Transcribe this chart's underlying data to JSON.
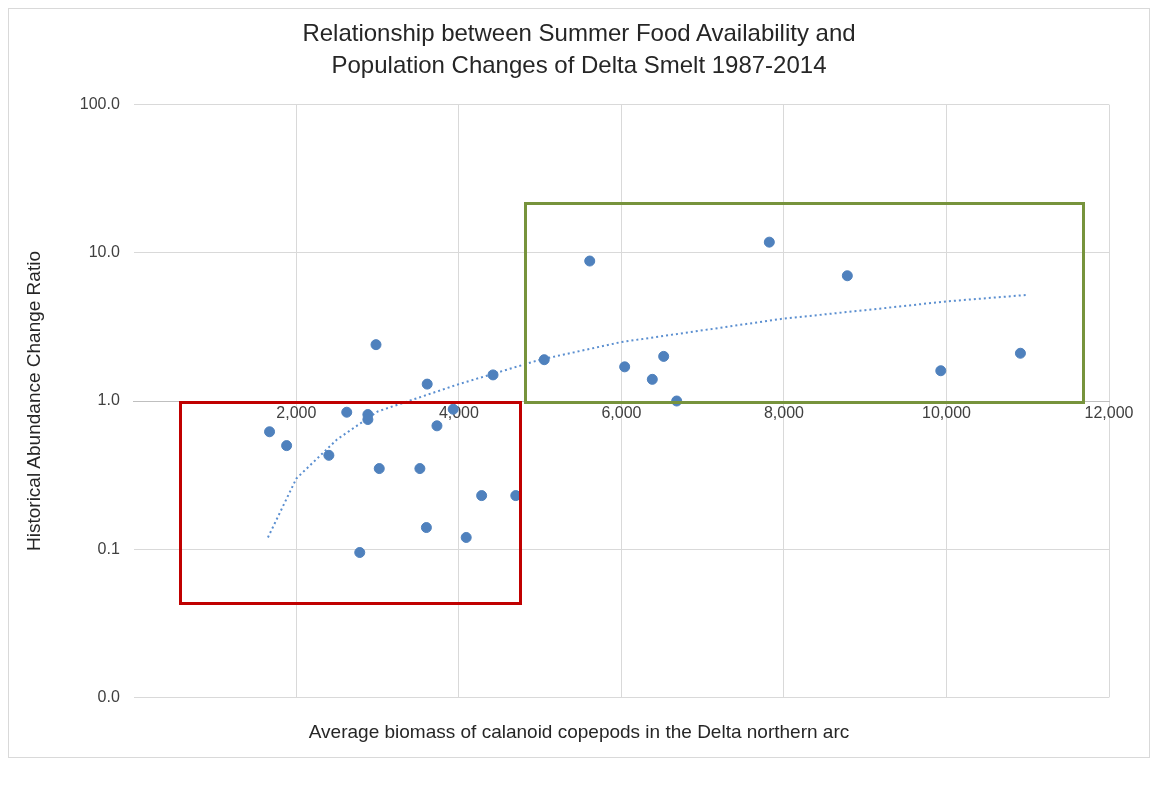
{
  "chart_data": {
    "type": "scatter",
    "title": "Relationship between Summer Food Availability and Population Changes of Delta Smelt 1987-2014",
    "xlabel": "Average biomass of calanoid copepods in the Delta northern arc",
    "ylabel": "Historical Abundance Change Ratio",
    "log": "y",
    "grid": true,
    "legend": false,
    "marker": "circle",
    "xlim": [
      0,
      12000
    ],
    "xticks": [
      {
        "value": 2000,
        "label": "2,000"
      },
      {
        "value": 4000,
        "label": "4,000"
      },
      {
        "value": 6000,
        "label": "6,000"
      },
      {
        "value": 8000,
        "label": "8,000"
      },
      {
        "value": 10000,
        "label": "10,000"
      },
      {
        "value": 12000,
        "label": "12,000"
      }
    ],
    "ylim": [
      0.01,
      100
    ],
    "yticks": [
      {
        "value": 0.01,
        "label": "0.0"
      },
      {
        "value": 0.1,
        "label": "0.1"
      },
      {
        "value": 1,
        "label": "1.0"
      },
      {
        "value": 10,
        "label": "10.0"
      },
      {
        "value": 100,
        "label": "100.0"
      }
    ],
    "series": [
      {
        "type": "scatter",
        "color": "#4f81bd",
        "x": [
          1670,
          1880,
          2400,
          2620,
          2780,
          2880,
          2880,
          2980,
          3020,
          3520,
          3600,
          3610,
          3730,
          3930,
          4090,
          4280,
          4420,
          4700,
          5050,
          5610,
          6040,
          6380,
          6520,
          6680,
          7820,
          8780,
          9930,
          10910
        ],
        "values": [
          0.62,
          0.5,
          0.43,
          0.84,
          0.095,
          0.81,
          0.75,
          2.4,
          0.35,
          0.35,
          0.14,
          1.3,
          0.68,
          0.88,
          0.12,
          0.23,
          1.5,
          0.23,
          1.9,
          8.8,
          1.7,
          1.4,
          2.0,
          1.0,
          11.8,
          7.0,
          1.6,
          2.1
        ]
      },
      {
        "type": "line",
        "color": "#5b8fd0",
        "line_style": "dotted",
        "marker": "none",
        "x": [
          1650,
          2000,
          2500,
          3000,
          4000,
          5000,
          6000,
          7000,
          8000,
          9000,
          10000,
          11000
        ],
        "values": [
          0.12,
          0.3,
          0.55,
          0.85,
          1.3,
          1.9,
          2.5,
          3.0,
          3.6,
          4.1,
          4.7,
          5.2
        ]
      }
    ]
  }
}
